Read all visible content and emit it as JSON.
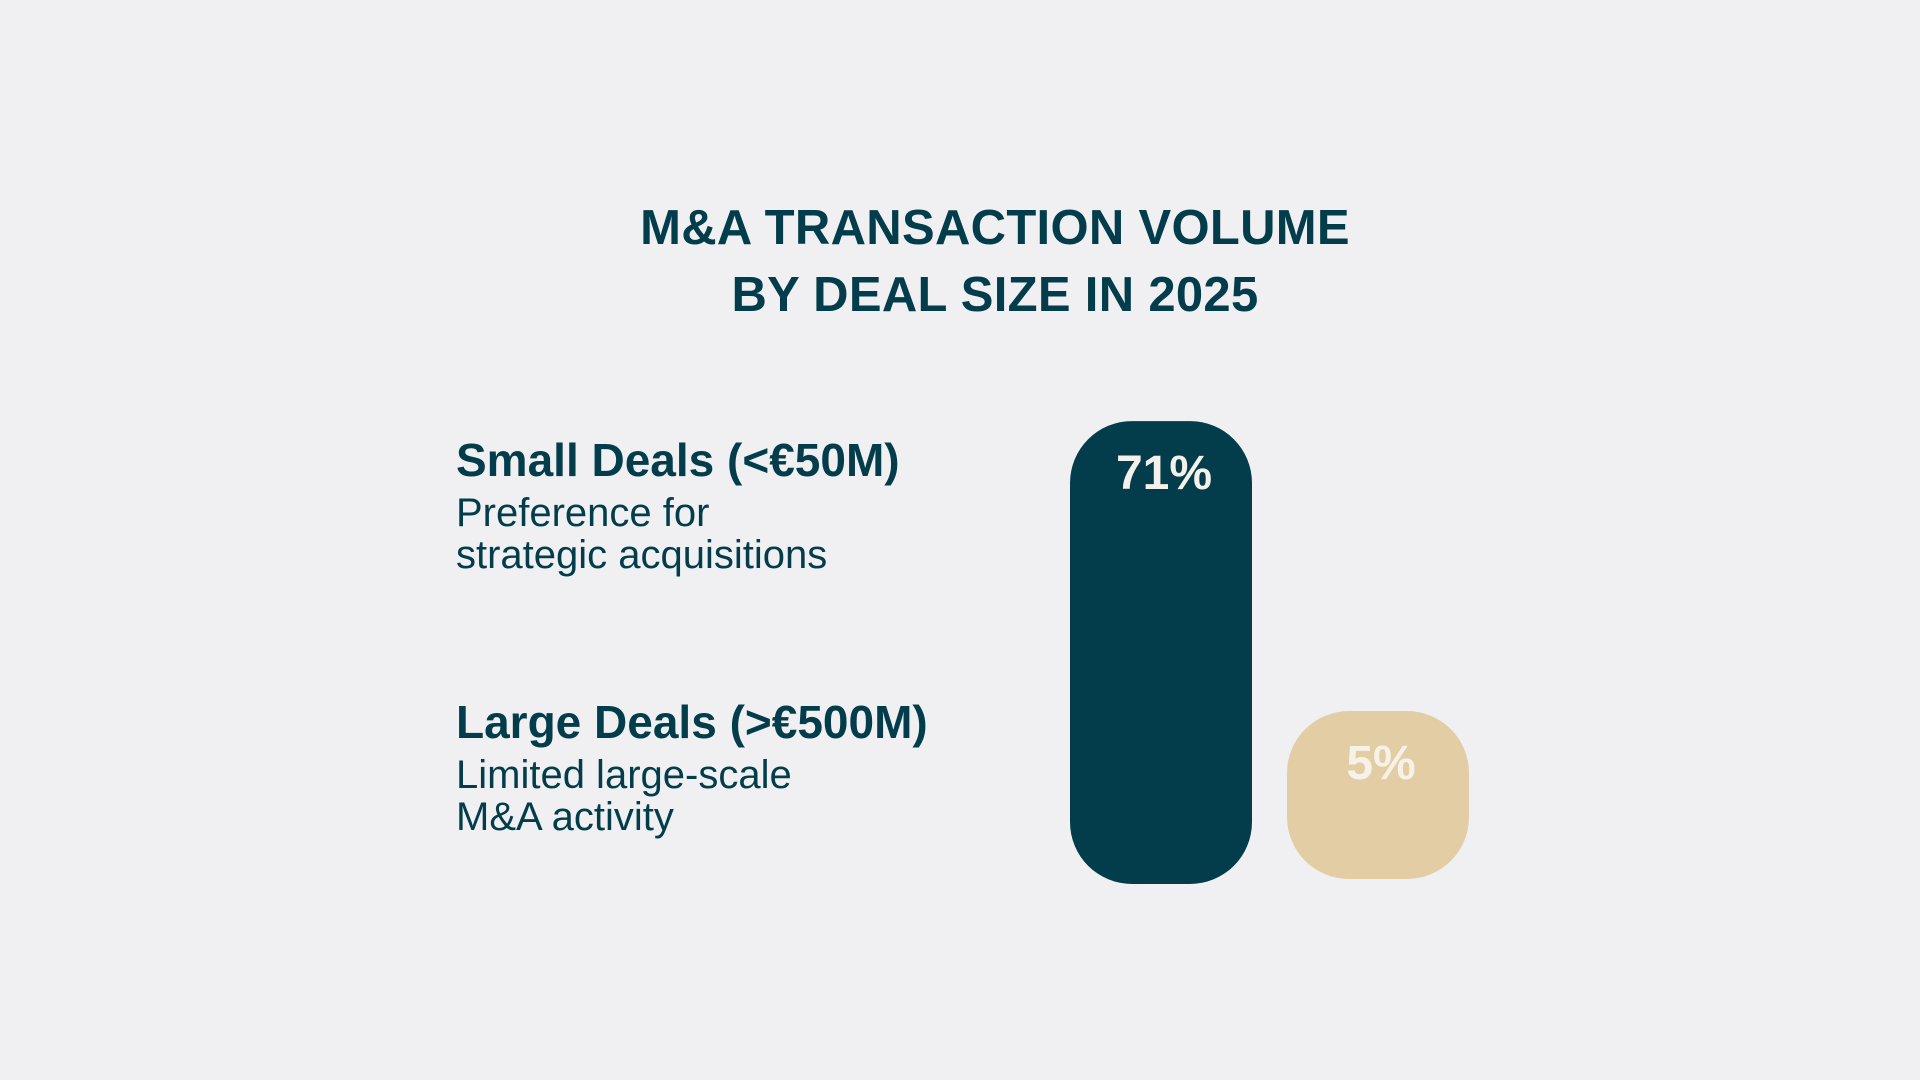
{
  "chart_data": {
    "type": "bar",
    "title_lines": [
      "M&A TRANSACTION VOLUME",
      "BY DEAL SIZE IN 2025"
    ],
    "categories": [
      "Small Deals (<€50M)",
      "Large Deals (>€500M)"
    ],
    "values": [
      71,
      5
    ],
    "value_labels": [
      "71%",
      "5%"
    ],
    "descriptions": [
      [
        "Preference for",
        "strategic acquisitions"
      ],
      [
        "Limited large-scale",
        "M&A activity"
      ]
    ],
    "unit": "%",
    "grid": false,
    "legend": "none",
    "colors": {
      "bars": [
        "#033c4a",
        "#e2cda5"
      ],
      "value_labels": [
        "#f4f1ea",
        "#f6f2e8"
      ],
      "text": "#033c4a",
      "background": "#f0f0f2"
    }
  }
}
